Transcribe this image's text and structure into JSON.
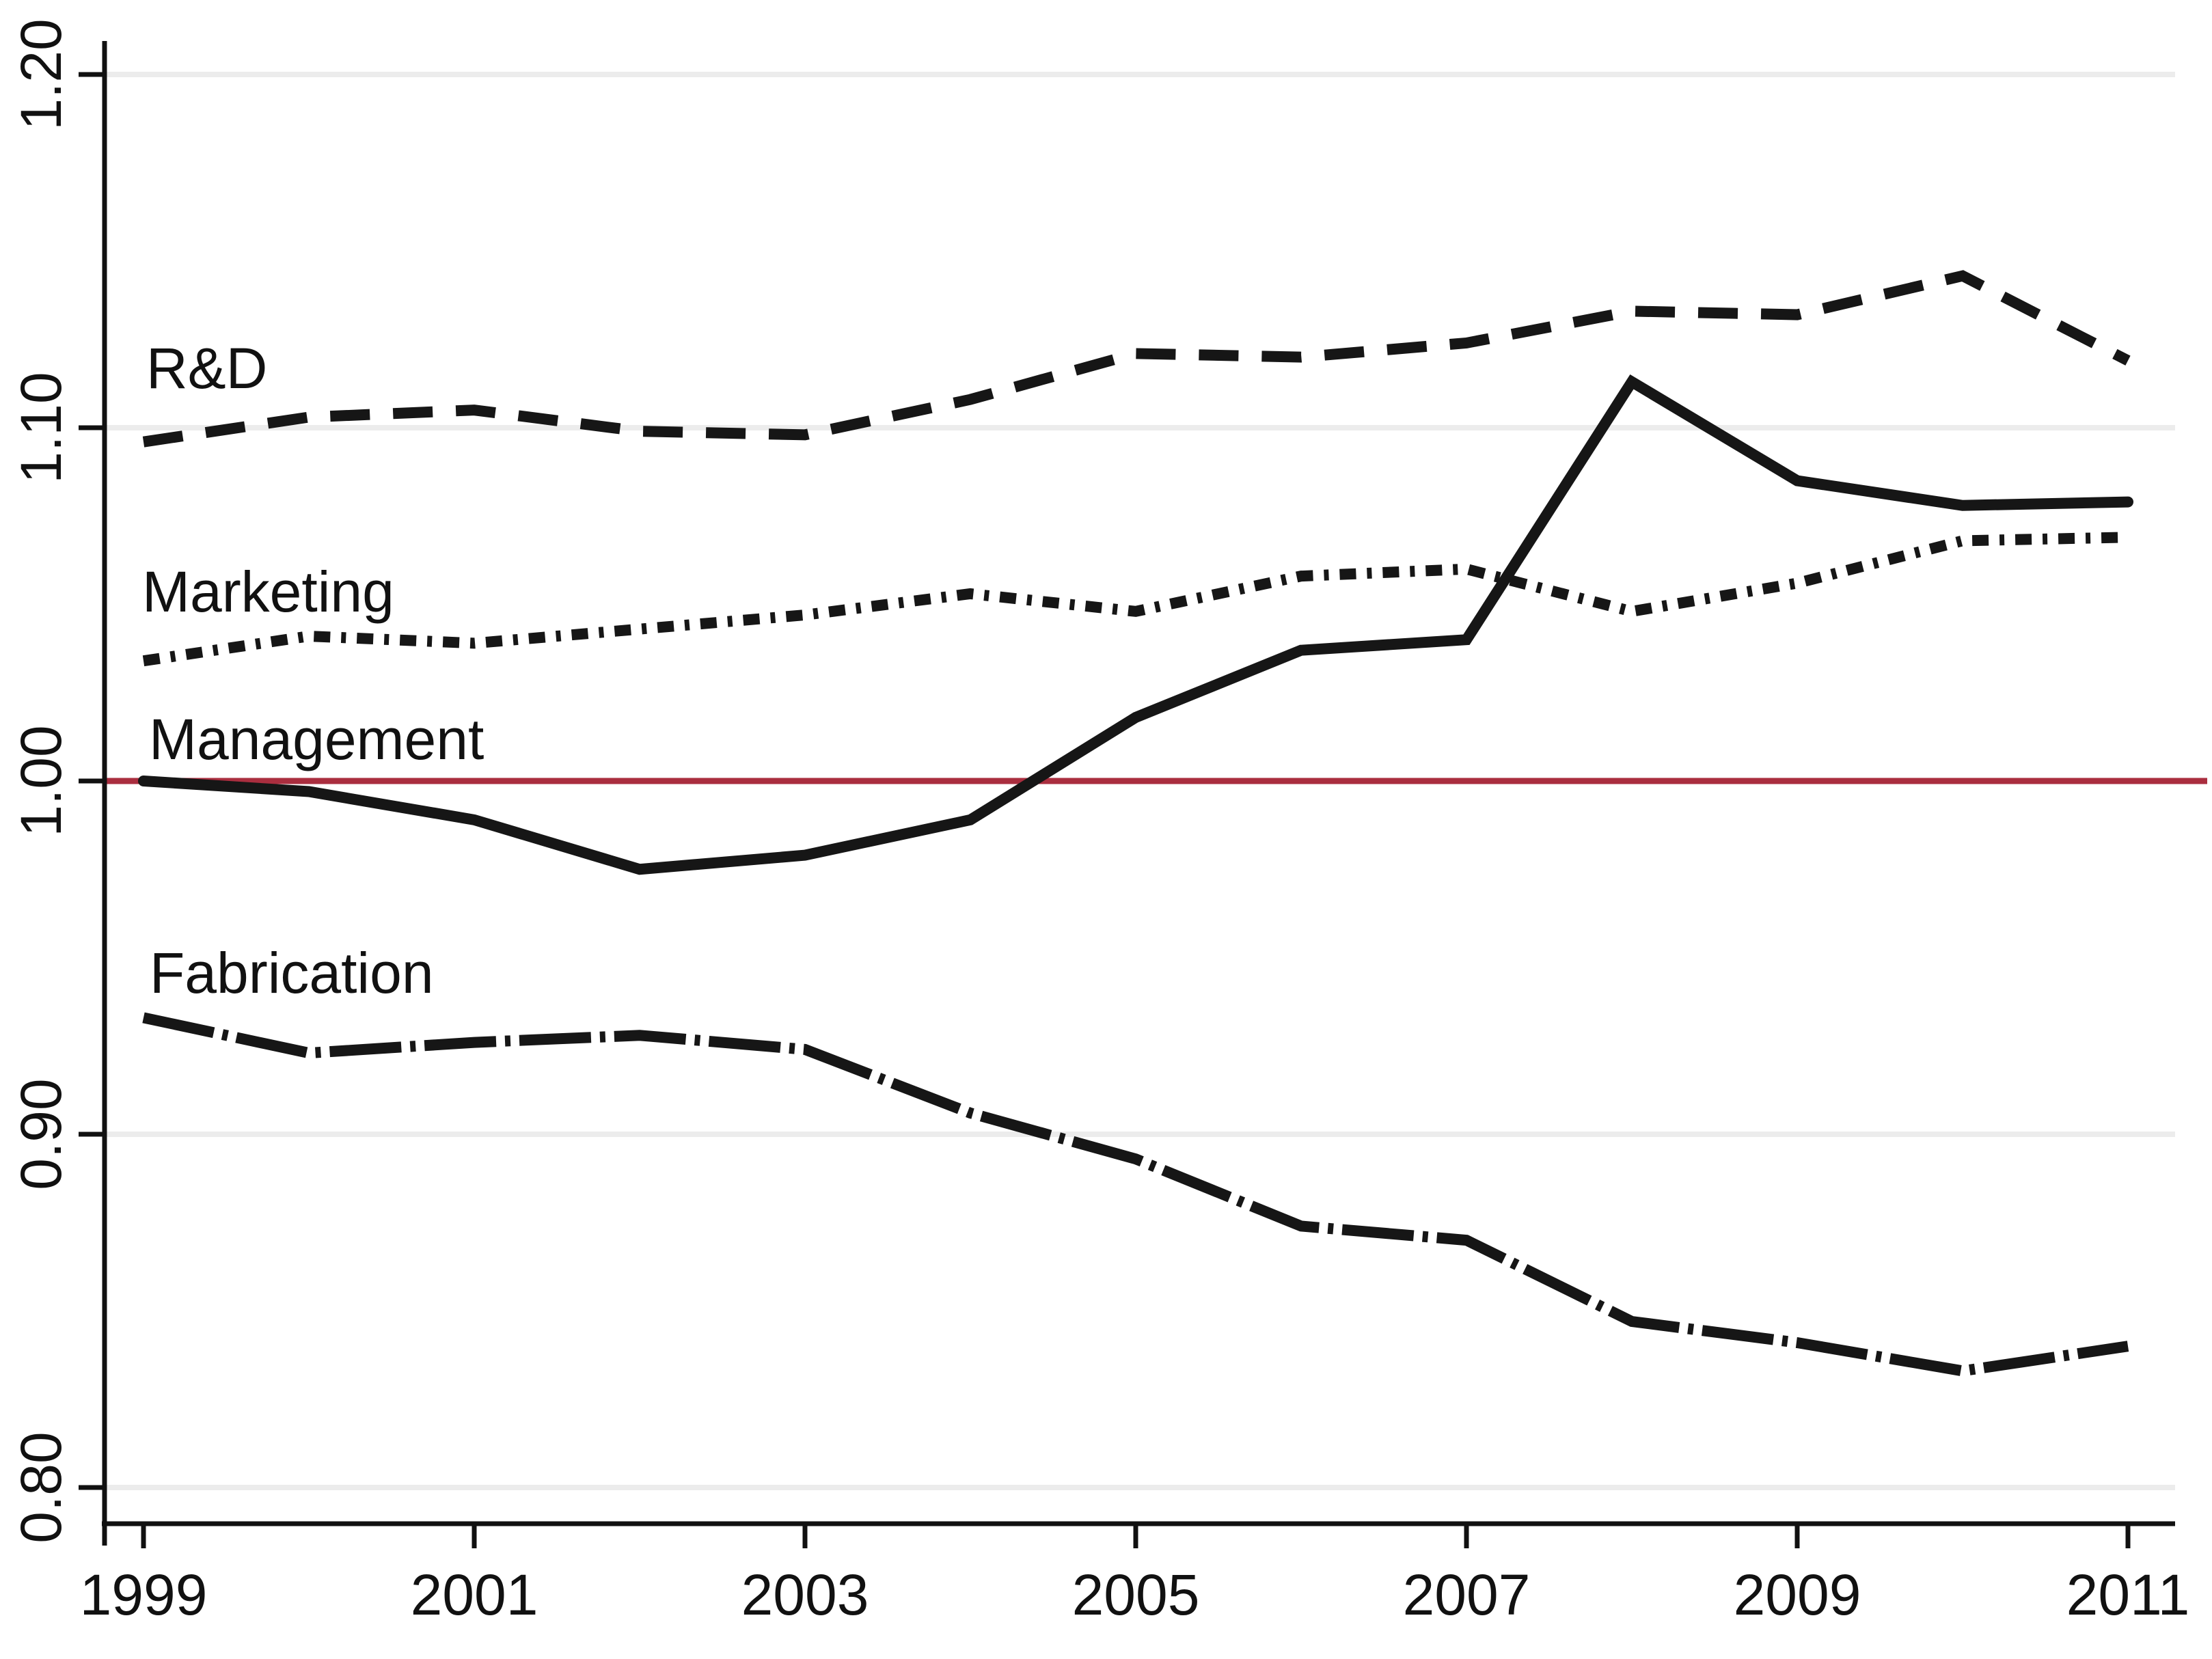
{
  "chart_data": {
    "type": "line",
    "title": "",
    "xlabel": "",
    "ylabel": "",
    "x": [
      1999,
      2000,
      2001,
      2002,
      2003,
      2004,
      2005,
      2006,
      2007,
      2008,
      2009,
      2010,
      2011
    ],
    "x_axis": {
      "ticks": [
        1999,
        2001,
        2003,
        2005,
        2007,
        2009,
        2011
      ],
      "tick_labels": [
        "1999",
        "2001",
        "2003",
        "2005",
        "2007",
        "2009",
        "2011"
      ]
    },
    "y_axis": {
      "ticks": [
        0.8,
        0.9,
        1.0,
        1.1,
        1.2
      ],
      "tick_labels": [
        "0.80",
        "0.90",
        "1.00",
        "1.10",
        "1.20"
      ],
      "range": [
        0.78,
        1.21
      ]
    },
    "grid": true,
    "legend": "inline-labels",
    "line_color": "#161616",
    "gridline_color": "#ececec",
    "reference_line": {
      "value": 1.0,
      "color": "#AA2E3F"
    },
    "series": [
      {
        "name": "rnd",
        "label": "R&D",
        "line_style": "dashed",
        "values": [
          1.096,
          1.103,
          1.105,
          1.099,
          1.098,
          1.108,
          1.121,
          1.12,
          1.124,
          1.133,
          1.132,
          1.143,
          1.119
        ]
      },
      {
        "name": "marketing",
        "label": "Marketing",
        "line_style": "dash-dot-dot",
        "values": [
          1.034,
          1.041,
          1.039,
          1.043,
          1.047,
          1.053,
          1.048,
          1.058,
          1.06,
          1.048,
          1.056,
          1.068,
          1.069
        ]
      },
      {
        "name": "management",
        "label": "Management",
        "line_style": "solid",
        "values": [
          1.0,
          0.997,
          0.989,
          0.975,
          0.979,
          0.989,
          1.018,
          1.037,
          1.04,
          1.113,
          1.085,
          1.078,
          1.079
        ]
      },
      {
        "name": "fabrication",
        "label": "Fabrication",
        "line_style": "long-dash-dot",
        "values": [
          0.933,
          0.923,
          0.926,
          0.928,
          0.924,
          0.906,
          0.893,
          0.874,
          0.87,
          0.847,
          0.841,
          0.833,
          0.84
        ]
      }
    ]
  }
}
